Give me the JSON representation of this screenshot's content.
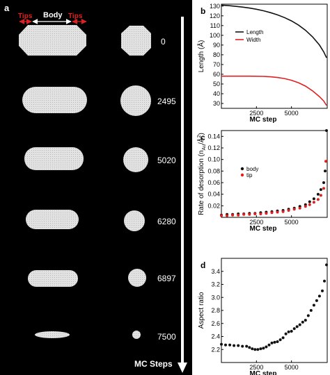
{
  "panel_a": {
    "label": "a",
    "header_labels": {
      "tips_left": "Tips",
      "body": "Body",
      "tips_right": "Tips"
    },
    "steps": [
      "0",
      "2495",
      "5020",
      "6280",
      "6897",
      "7500"
    ],
    "axis_label": "MC Steps"
  },
  "colors": {
    "length": "#111111",
    "width": "#e02020",
    "body": "#111111",
    "tip": "#e02020",
    "panel_bg": "#000000",
    "particle": "#dcdcdc"
  },
  "chart_data": [
    {
      "panel": "b",
      "type": "line",
      "xlabel": "MC step",
      "ylabel": "Length (Å)",
      "xlim": [
        0,
        7550
      ],
      "ylim": [
        25,
        132
      ],
      "xticks": [
        2500,
        5000
      ],
      "yticks": [
        30,
        40,
        50,
        60,
        70,
        80,
        90,
        100,
        110,
        120,
        130
      ],
      "legend_position": "upper-left",
      "series": [
        {
          "name": "Length",
          "x": [
            0,
            500,
            1000,
            1500,
            2000,
            2500,
            3000,
            3500,
            4000,
            4500,
            5000,
            5500,
            6000,
            6500,
            7000,
            7300,
            7500
          ],
          "y": [
            131,
            130.5,
            129.8,
            129,
            128,
            126.8,
            125.2,
            123.3,
            121,
            118.2,
            114.8,
            110.5,
            105.2,
            98.5,
            90,
            83,
            77
          ]
        },
        {
          "name": "Width",
          "x": [
            0,
            1000,
            2000,
            3000,
            3500,
            4000,
            4500,
            5000,
            5500,
            6000,
            6500,
            7000,
            7300,
            7500
          ],
          "y": [
            58,
            58,
            58,
            57.8,
            57.4,
            56.7,
            55.6,
            53.8,
            51.3,
            47.8,
            43,
            37,
            32.5,
            28
          ]
        }
      ]
    },
    {
      "panel": "c",
      "type": "scatter",
      "xlabel": "MC step",
      "ylabel": "Rate of desorption (n",
      "ylabel_sub": "Au",
      "ylabel_tail": "/Å",
      "ylabel_sup": "2",
      "ylabel_end": ")",
      "xlim": [
        0,
        7550
      ],
      "ylim": [
        0.0,
        0.15
      ],
      "xticks": [
        2500,
        5000
      ],
      "yticks": [
        0.02,
        0.04,
        0.06,
        0.08,
        0.1,
        0.12,
        0.14
      ],
      "ytick_labels": [
        "0.02",
        "0.04",
        "0.06",
        "0.08",
        "0.10",
        "0.12",
        "0.14"
      ],
      "legend_position": "center-left",
      "series": [
        {
          "name": "body",
          "x": [
            0,
            400,
            800,
            1200,
            1600,
            2000,
            2400,
            2800,
            3200,
            3600,
            4000,
            4400,
            4800,
            5200,
            5600,
            6000,
            6300,
            6600,
            6900,
            7100,
            7300,
            7400,
            7500
          ],
          "y": [
            0.004,
            0.005,
            0.005,
            0.006,
            0.006,
            0.007,
            0.007,
            0.008,
            0.009,
            0.01,
            0.011,
            0.012,
            0.014,
            0.016,
            0.019,
            0.022,
            0.027,
            0.032,
            0.04,
            0.048,
            0.06,
            0.08,
            0.15
          ]
        },
        {
          "name": "tip",
          "x": [
            0,
            400,
            800,
            1200,
            1600,
            2000,
            2400,
            2800,
            3200,
            3600,
            4000,
            4400,
            4800,
            5200,
            5600,
            6000,
            6300,
            6600,
            6900,
            7100,
            7300,
            7450
          ],
          "y": [
            0.003,
            0.003,
            0.004,
            0.004,
            0.005,
            0.005,
            0.006,
            0.006,
            0.007,
            0.008,
            0.009,
            0.01,
            0.012,
            0.014,
            0.016,
            0.019,
            0.022,
            0.026,
            0.031,
            0.038,
            0.05,
            0.097
          ]
        }
      ]
    },
    {
      "panel": "d",
      "type": "scatter",
      "xlabel": "MC step",
      "ylabel": "Aspect ratio",
      "xlim": [
        0,
        7550
      ],
      "ylim": [
        2.0,
        3.6
      ],
      "xticks": [
        2500,
        5000
      ],
      "yticks": [
        2.2,
        2.4,
        2.6,
        2.8,
        3.0,
        3.2,
        3.4
      ],
      "ytick_labels": [
        "2.2",
        "2.4",
        "2.6",
        "2.8",
        "3.0",
        "3.2",
        "3.4"
      ],
      "series": [
        {
          "name": "",
          "x": [
            0,
            300,
            600,
            900,
            1200,
            1500,
            1800,
            2000,
            2200,
            2400,
            2600,
            2800,
            3000,
            3200,
            3400,
            3600,
            3800,
            4000,
            4200,
            4400,
            4600,
            4800,
            5000,
            5200,
            5400,
            5600,
            5800,
            6000,
            6200,
            6400,
            6600,
            6800,
            7000,
            7200,
            7350,
            7500
          ],
          "y": [
            2.28,
            2.27,
            2.27,
            2.26,
            2.26,
            2.25,
            2.25,
            2.23,
            2.21,
            2.2,
            2.2,
            2.21,
            2.22,
            2.24,
            2.27,
            2.3,
            2.31,
            2.32,
            2.35,
            2.38,
            2.44,
            2.47,
            2.48,
            2.52,
            2.55,
            2.58,
            2.62,
            2.65,
            2.72,
            2.8,
            2.88,
            2.95,
            3.02,
            3.1,
            3.25,
            3.5
          ]
        }
      ]
    }
  ]
}
